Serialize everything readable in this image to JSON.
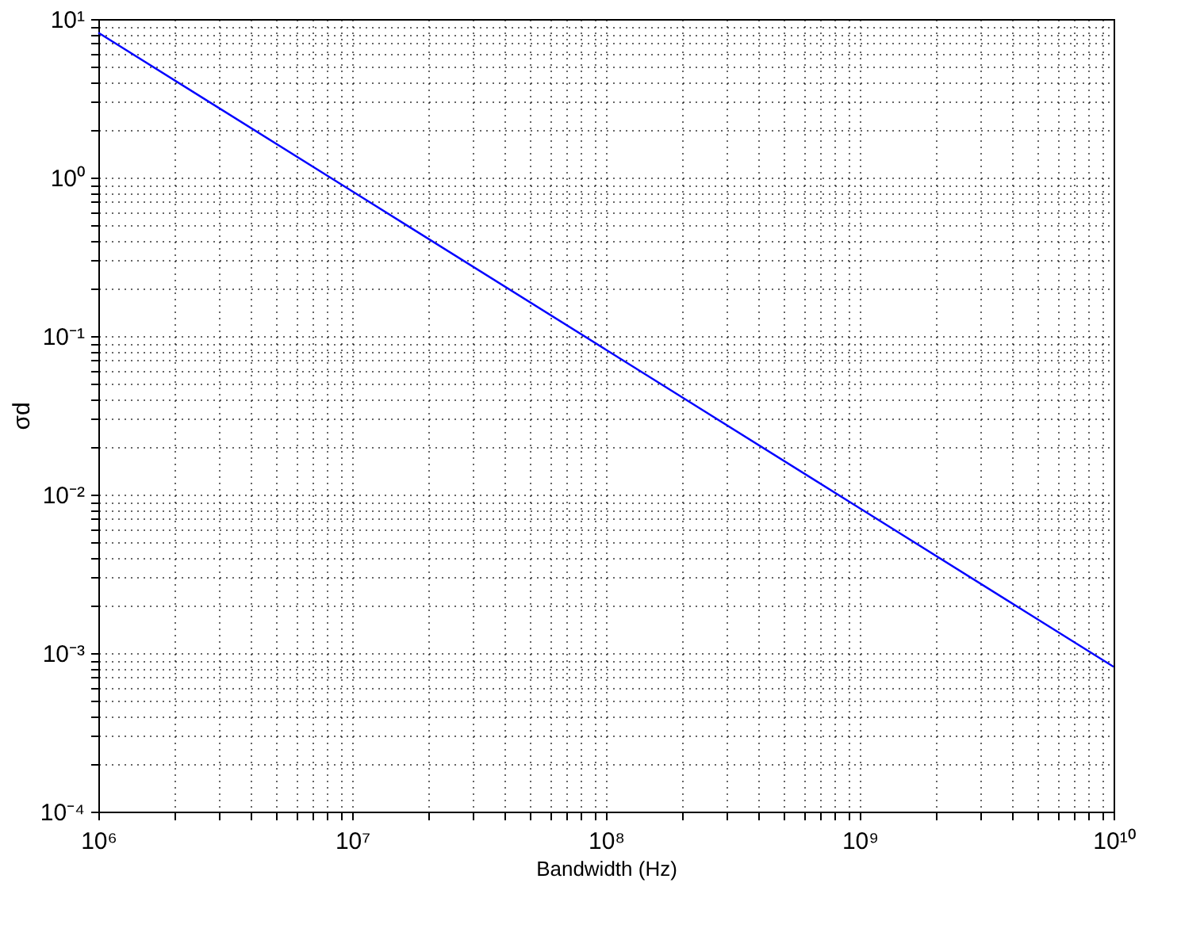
{
  "chart_data": {
    "type": "line",
    "xlabel": "Bandwidth (Hz)",
    "ylabel": "σd",
    "log": "xy",
    "grid": true,
    "marker": "none",
    "line_style": "solid",
    "x": [
      1000000,
      10000000,
      100000000,
      1000000000,
      10000000000
    ],
    "series": [
      {
        "color": "#0000ff",
        "values": [
          8.2,
          0.82,
          0.082,
          0.0082,
          0.00082
        ]
      }
    ],
    "xlim": [
      1000000,
      10000000000
    ],
    "ylim": [
      0.0001,
      10
    ],
    "xticks": [
      {
        "value": 1000000,
        "label": "10⁶"
      },
      {
        "value": 2000000,
        "label": null
      },
      {
        "value": 3000000,
        "label": null
      },
      {
        "value": 4000000,
        "label": null
      },
      {
        "value": 5000000,
        "label": null
      },
      {
        "value": 6000000,
        "label": null
      },
      {
        "value": 7000000,
        "label": null
      },
      {
        "value": 8000000,
        "label": null
      },
      {
        "value": 9000000,
        "label": null
      },
      {
        "value": 10000000,
        "label": "10⁷"
      },
      {
        "value": 20000000,
        "label": null
      },
      {
        "value": 30000000,
        "label": null
      },
      {
        "value": 40000000,
        "label": null
      },
      {
        "value": 50000000,
        "label": null
      },
      {
        "value": 60000000,
        "label": null
      },
      {
        "value": 70000000,
        "label": null
      },
      {
        "value": 80000000,
        "label": null
      },
      {
        "value": 90000000,
        "label": null
      },
      {
        "value": 100000000,
        "label": "10⁸"
      },
      {
        "value": 200000000,
        "label": null
      },
      {
        "value": 300000000,
        "label": null
      },
      {
        "value": 400000000,
        "label": null
      },
      {
        "value": 500000000,
        "label": null
      },
      {
        "value": 600000000,
        "label": null
      },
      {
        "value": 700000000,
        "label": null
      },
      {
        "value": 800000000,
        "label": null
      },
      {
        "value": 900000000,
        "label": null
      },
      {
        "value": 1000000000,
        "label": "10⁹"
      },
      {
        "value": 2000000000,
        "label": null
      },
      {
        "value": 3000000000,
        "label": null
      },
      {
        "value": 4000000000,
        "label": null
      },
      {
        "value": 5000000000,
        "label": null
      },
      {
        "value": 6000000000,
        "label": null
      },
      {
        "value": 7000000000,
        "label": null
      },
      {
        "value": 8000000000,
        "label": null
      },
      {
        "value": 9000000000,
        "label": null
      },
      {
        "value": 10000000000,
        "label": "10¹⁰"
      }
    ],
    "yticks": [
      {
        "value": 0.0001,
        "label": "10⁻⁴"
      },
      {
        "value": 0.0002,
        "label": null
      },
      {
        "value": 0.0003,
        "label": null
      },
      {
        "value": 0.0004,
        "label": null
      },
      {
        "value": 0.0005,
        "label": null
      },
      {
        "value": 0.0006,
        "label": null
      },
      {
        "value": 0.0007,
        "label": null
      },
      {
        "value": 0.0008,
        "label": null
      },
      {
        "value": 0.0009,
        "label": null
      },
      {
        "value": 0.001,
        "label": "10⁻³"
      },
      {
        "value": 0.002,
        "label": null
      },
      {
        "value": 0.003,
        "label": null
      },
      {
        "value": 0.004,
        "label": null
      },
      {
        "value": 0.005,
        "label": null
      },
      {
        "value": 0.006,
        "label": null
      },
      {
        "value": 0.007,
        "label": null
      },
      {
        "value": 0.008,
        "label": null
      },
      {
        "value": 0.009,
        "label": null
      },
      {
        "value": 0.01,
        "label": "10⁻²"
      },
      {
        "value": 0.02,
        "label": null
      },
      {
        "value": 0.03,
        "label": null
      },
      {
        "value": 0.04,
        "label": null
      },
      {
        "value": 0.05,
        "label": null
      },
      {
        "value": 0.06,
        "label": null
      },
      {
        "value": 0.07,
        "label": null
      },
      {
        "value": 0.08,
        "label": null
      },
      {
        "value": 0.09,
        "label": null
      },
      {
        "value": 0.1,
        "label": "10⁻¹"
      },
      {
        "value": 0.2,
        "label": null
      },
      {
        "value": 0.3,
        "label": null
      },
      {
        "value": 0.4,
        "label": null
      },
      {
        "value": 0.5,
        "label": null
      },
      {
        "value": 0.6,
        "label": null
      },
      {
        "value": 0.7,
        "label": null
      },
      {
        "value": 0.8,
        "label": null
      },
      {
        "value": 0.9,
        "label": null
      },
      {
        "value": 1,
        "label": "10⁰"
      },
      {
        "value": 2,
        "label": null
      },
      {
        "value": 3,
        "label": null
      },
      {
        "value": 4,
        "label": null
      },
      {
        "value": 5,
        "label": null
      },
      {
        "value": 6,
        "label": null
      },
      {
        "value": 7,
        "label": null
      },
      {
        "value": 8,
        "label": null
      },
      {
        "value": 9,
        "label": null
      },
      {
        "value": 10,
        "label": "10¹"
      }
    ]
  }
}
